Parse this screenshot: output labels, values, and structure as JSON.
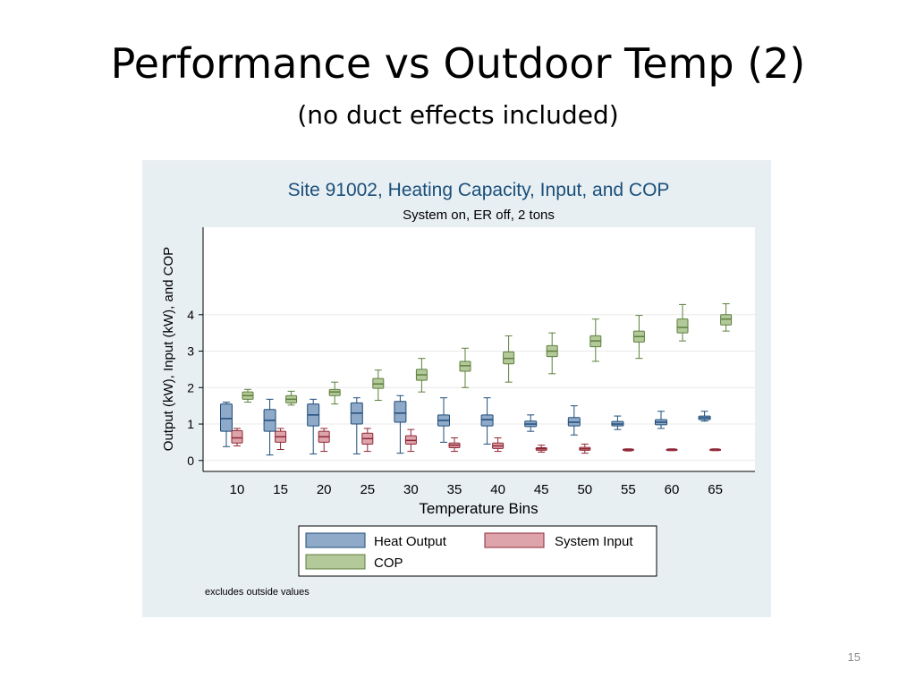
{
  "slide": {
    "title": "Performance vs Outdoor Temp (2)",
    "subtitle": "(no duct effects included)",
    "page_number": "15"
  },
  "colors": {
    "panel_bg": "#e8eff3",
    "plot_bg": "#ffffff",
    "heat_output_fill": "#8fa9c8",
    "heat_output_stroke": "#1f4d7a",
    "system_input_fill": "#dda5ab",
    "system_input_stroke": "#8e2735",
    "cop_fill": "#b4c99a",
    "cop_stroke": "#5c7f3d",
    "title_color": "#1a4f7a"
  },
  "chart_data": {
    "type": "box",
    "title": "Site 91002, Heating Capacity, Input, and COP",
    "subtitle": "System on, ER off, 2 tons",
    "xlabel": "Temperature Bins",
    "ylabel": "Output (kW), Input (kW), and COP",
    "categories": [
      "10",
      "15",
      "20",
      "25",
      "30",
      "35",
      "40",
      "45",
      "50",
      "55",
      "60",
      "65"
    ],
    "yticks": [
      0,
      1,
      2,
      3,
      4
    ],
    "ylim": [
      -0.3,
      6.4
    ],
    "grid": true,
    "note": "excludes outside values",
    "legend": {
      "placement": "bottom",
      "entries": [
        "Heat Output",
        "System Input",
        "COP"
      ]
    },
    "series": [
      {
        "name": "Heat Output",
        "boxes": [
          {
            "min": 0.38,
            "q1": 0.8,
            "median": 1.15,
            "q3": 1.55,
            "max": 1.6
          },
          {
            "min": 0.15,
            "q1": 0.8,
            "median": 1.1,
            "q3": 1.4,
            "max": 1.68
          },
          {
            "min": 0.18,
            "q1": 0.95,
            "median": 1.25,
            "q3": 1.55,
            "max": 1.68
          },
          {
            "min": 0.18,
            "q1": 1.0,
            "median": 1.3,
            "q3": 1.58,
            "max": 1.72
          },
          {
            "min": 0.2,
            "q1": 1.05,
            "median": 1.3,
            "q3": 1.62,
            "max": 1.78
          },
          {
            "min": 0.5,
            "q1": 0.95,
            "median": 1.1,
            "q3": 1.25,
            "max": 1.72
          },
          {
            "min": 0.45,
            "q1": 0.95,
            "median": 1.12,
            "q3": 1.25,
            "max": 1.72
          },
          {
            "min": 0.8,
            "q1": 0.93,
            "median": 1.0,
            "q3": 1.08,
            "max": 1.25
          },
          {
            "min": 0.7,
            "q1": 0.95,
            "median": 1.05,
            "q3": 1.18,
            "max": 1.5
          },
          {
            "min": 0.85,
            "q1": 0.95,
            "median": 1.0,
            "q3": 1.07,
            "max": 1.22
          },
          {
            "min": 0.88,
            "q1": 0.98,
            "median": 1.05,
            "q3": 1.12,
            "max": 1.35
          },
          {
            "min": 1.08,
            "q1": 1.12,
            "median": 1.17,
            "q3": 1.22,
            "max": 1.35
          }
        ]
      },
      {
        "name": "System Input",
        "boxes": [
          {
            "min": 0.4,
            "q1": 0.48,
            "median": 0.62,
            "q3": 0.82,
            "max": 0.88
          },
          {
            "min": 0.3,
            "q1": 0.5,
            "median": 0.65,
            "q3": 0.8,
            "max": 0.88
          },
          {
            "min": 0.25,
            "q1": 0.5,
            "median": 0.65,
            "q3": 0.8,
            "max": 0.88
          },
          {
            "min": 0.25,
            "q1": 0.45,
            "median": 0.6,
            "q3": 0.75,
            "max": 0.88
          },
          {
            "min": 0.25,
            "q1": 0.45,
            "median": 0.55,
            "q3": 0.68,
            "max": 0.85
          },
          {
            "min": 0.25,
            "q1": 0.35,
            "median": 0.42,
            "q3": 0.48,
            "max": 0.62
          },
          {
            "min": 0.25,
            "q1": 0.33,
            "median": 0.4,
            "q3": 0.48,
            "max": 0.62
          },
          {
            "min": 0.23,
            "q1": 0.28,
            "median": 0.32,
            "q3": 0.35,
            "max": 0.42
          },
          {
            "min": 0.2,
            "q1": 0.28,
            "median": 0.32,
            "q3": 0.36,
            "max": 0.45
          },
          {
            "min": 0.26,
            "q1": 0.28,
            "median": 0.3,
            "q3": 0.31,
            "max": 0.32
          },
          {
            "min": 0.27,
            "q1": 0.29,
            "median": 0.3,
            "q3": 0.31,
            "max": 0.32
          },
          {
            "min": 0.27,
            "q1": 0.29,
            "median": 0.3,
            "q3": 0.31,
            "max": 0.32
          }
        ]
      },
      {
        "name": "COP",
        "boxes": [
          {
            "min": 1.6,
            "q1": 1.68,
            "median": 1.78,
            "q3": 1.88,
            "max": 1.95
          },
          {
            "min": 1.52,
            "q1": 1.58,
            "median": 1.68,
            "q3": 1.78,
            "max": 1.9
          },
          {
            "min": 1.55,
            "q1": 1.78,
            "median": 1.88,
            "q3": 1.95,
            "max": 2.15
          },
          {
            "min": 1.65,
            "q1": 1.98,
            "median": 2.1,
            "q3": 2.25,
            "max": 2.48
          },
          {
            "min": 1.88,
            "q1": 2.2,
            "median": 2.35,
            "q3": 2.5,
            "max": 2.8
          },
          {
            "min": 2.0,
            "q1": 2.45,
            "median": 2.6,
            "q3": 2.72,
            "max": 3.08
          },
          {
            "min": 2.15,
            "q1": 2.65,
            "median": 2.8,
            "q3": 2.98,
            "max": 3.42
          },
          {
            "min": 2.38,
            "q1": 2.85,
            "median": 3.0,
            "q3": 3.15,
            "max": 3.5
          },
          {
            "min": 2.72,
            "q1": 3.12,
            "median": 3.28,
            "q3": 3.42,
            "max": 3.88
          },
          {
            "min": 2.8,
            "q1": 3.25,
            "median": 3.4,
            "q3": 3.55,
            "max": 3.98
          },
          {
            "min": 3.28,
            "q1": 3.5,
            "median": 3.65,
            "q3": 3.88,
            "max": 4.28
          },
          {
            "min": 3.55,
            "q1": 3.72,
            "median": 3.88,
            "q3": 4.0,
            "max": 4.3
          }
        ]
      }
    ]
  }
}
